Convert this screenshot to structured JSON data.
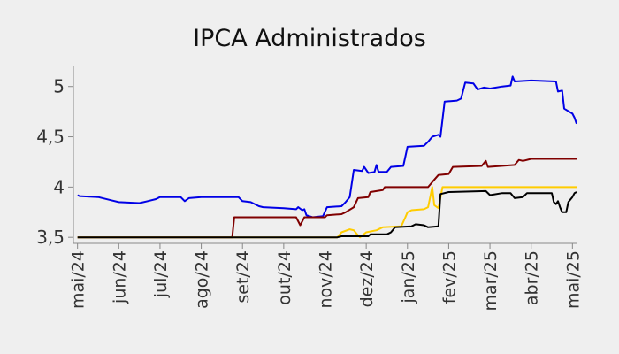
{
  "chart_data": {
    "type": "line",
    "title": "IPCA Administrados",
    "xlabel": "",
    "ylabel": "",
    "x_ticks": [
      {
        "t": 0,
        "label": "mai/24"
      },
      {
        "t": 1,
        "label": "jun/24"
      },
      {
        "t": 2,
        "label": "jul/24"
      },
      {
        "t": 3,
        "label": "ago/24"
      },
      {
        "t": 4,
        "label": "set/24"
      },
      {
        "t": 5,
        "label": "out/24"
      },
      {
        "t": 6,
        "label": "nov/24"
      },
      {
        "t": 7,
        "label": "dez/24"
      },
      {
        "t": 8,
        "label": "jan/25"
      },
      {
        "t": 9,
        "label": "fev/25"
      },
      {
        "t": 10,
        "label": "mar/25"
      },
      {
        "t": 11,
        "label": "abr/25"
      },
      {
        "t": 12,
        "label": "mai/25"
      }
    ],
    "y_ticks": [
      {
        "v": 3.5,
        "label": "3,5"
      },
      {
        "v": 4.0,
        "label": "4"
      },
      {
        "v": 4.5,
        "label": "4,5"
      },
      {
        "v": 5.0,
        "label": "5"
      }
    ],
    "xlim": [
      -0.1,
      12.1
    ],
    "ylim": [
      3.44,
      5.2
    ],
    "grid": false,
    "legend": "none",
    "series": [
      {
        "color": "#0000e6",
        "points": [
          [
            0.0,
            3.92
          ],
          [
            0.05,
            3.91
          ],
          [
            0.5,
            3.9
          ],
          [
            1.0,
            3.85
          ],
          [
            1.5,
            3.84
          ],
          [
            1.7,
            3.86
          ],
          [
            1.9,
            3.88
          ],
          [
            2.0,
            3.9
          ],
          [
            2.5,
            3.9
          ],
          [
            2.6,
            3.86
          ],
          [
            2.7,
            3.89
          ],
          [
            3.0,
            3.9
          ],
          [
            3.9,
            3.9
          ],
          [
            4.0,
            3.86
          ],
          [
            4.2,
            3.85
          ],
          [
            4.4,
            3.81
          ],
          [
            4.5,
            3.8
          ],
          [
            5.0,
            3.79
          ],
          [
            5.3,
            3.78
          ],
          [
            5.35,
            3.8
          ],
          [
            5.45,
            3.77
          ],
          [
            5.5,
            3.78
          ],
          [
            5.55,
            3.72
          ],
          [
            5.7,
            3.7
          ],
          [
            5.95,
            3.71
          ],
          [
            6.05,
            3.8
          ],
          [
            6.4,
            3.81
          ],
          [
            6.5,
            3.85
          ],
          [
            6.6,
            3.9
          ],
          [
            6.7,
            4.17
          ],
          [
            6.9,
            4.16
          ],
          [
            6.95,
            4.2
          ],
          [
            7.05,
            4.14
          ],
          [
            7.2,
            4.15
          ],
          [
            7.25,
            4.22
          ],
          [
            7.3,
            4.15
          ],
          [
            7.5,
            4.15
          ],
          [
            7.6,
            4.2
          ],
          [
            7.9,
            4.21
          ],
          [
            8.0,
            4.4
          ],
          [
            8.4,
            4.41
          ],
          [
            8.5,
            4.45
          ],
          [
            8.6,
            4.5
          ],
          [
            8.75,
            4.52
          ],
          [
            8.8,
            4.5
          ],
          [
            8.9,
            4.85
          ],
          [
            9.2,
            4.86
          ],
          [
            9.3,
            4.88
          ],
          [
            9.4,
            5.04
          ],
          [
            9.6,
            5.03
          ],
          [
            9.7,
            4.97
          ],
          [
            9.85,
            4.99
          ],
          [
            10.0,
            4.98
          ],
          [
            10.3,
            5.0
          ],
          [
            10.5,
            5.01
          ],
          [
            10.55,
            5.1
          ],
          [
            10.6,
            5.05
          ],
          [
            11.0,
            5.06
          ],
          [
            11.6,
            5.05
          ],
          [
            11.65,
            4.95
          ],
          [
            11.75,
            4.96
          ],
          [
            11.8,
            4.78
          ],
          [
            12.0,
            4.73
          ],
          [
            12.05,
            4.69
          ],
          [
            12.1,
            4.63
          ]
        ]
      },
      {
        "color": "#800000",
        "points": [
          [
            0.0,
            3.5
          ],
          [
            3.75,
            3.5
          ],
          [
            3.8,
            3.7
          ],
          [
            5.3,
            3.7
          ],
          [
            5.4,
            3.62
          ],
          [
            5.5,
            3.7
          ],
          [
            6.0,
            3.7
          ],
          [
            6.05,
            3.72
          ],
          [
            6.4,
            3.73
          ],
          [
            6.5,
            3.75
          ],
          [
            6.7,
            3.8
          ],
          [
            6.8,
            3.89
          ],
          [
            7.05,
            3.9
          ],
          [
            7.1,
            3.95
          ],
          [
            7.4,
            3.97
          ],
          [
            7.45,
            4.0
          ],
          [
            8.5,
            4.0
          ],
          [
            8.6,
            4.05
          ],
          [
            8.75,
            4.12
          ],
          [
            9.0,
            4.13
          ],
          [
            9.1,
            4.2
          ],
          [
            9.8,
            4.21
          ],
          [
            9.9,
            4.26
          ],
          [
            9.95,
            4.2
          ],
          [
            10.6,
            4.22
          ],
          [
            10.7,
            4.27
          ],
          [
            10.8,
            4.26
          ],
          [
            11.0,
            4.28
          ],
          [
            12.1,
            4.28
          ]
        ]
      },
      {
        "color": "#ffcc00",
        "points": [
          [
            0.0,
            3.5
          ],
          [
            6.3,
            3.5
          ],
          [
            6.4,
            3.55
          ],
          [
            6.6,
            3.58
          ],
          [
            6.7,
            3.57
          ],
          [
            6.8,
            3.52
          ],
          [
            6.85,
            3.5
          ],
          [
            7.0,
            3.55
          ],
          [
            7.25,
            3.57
          ],
          [
            7.4,
            3.6
          ],
          [
            7.85,
            3.61
          ],
          [
            7.95,
            3.7
          ],
          [
            8.0,
            3.75
          ],
          [
            8.1,
            3.77
          ],
          [
            8.4,
            3.78
          ],
          [
            8.5,
            3.8
          ],
          [
            8.6,
            4.0
          ],
          [
            8.65,
            3.82
          ],
          [
            8.75,
            3.79
          ],
          [
            8.85,
            4.0
          ],
          [
            12.1,
            4.0
          ]
        ]
      },
      {
        "color": "#000000",
        "points": [
          [
            0.0,
            3.5
          ],
          [
            4.0,
            3.5
          ],
          [
            6.3,
            3.5
          ],
          [
            6.4,
            3.51
          ],
          [
            7.05,
            3.51
          ],
          [
            7.1,
            3.53
          ],
          [
            7.5,
            3.53
          ],
          [
            7.6,
            3.55
          ],
          [
            7.7,
            3.6
          ],
          [
            8.1,
            3.61
          ],
          [
            8.2,
            3.63
          ],
          [
            8.4,
            3.62
          ],
          [
            8.5,
            3.6
          ],
          [
            8.75,
            3.61
          ],
          [
            8.8,
            3.93
          ],
          [
            9.0,
            3.95
          ],
          [
            9.9,
            3.96
          ],
          [
            10.0,
            3.92
          ],
          [
            10.3,
            3.94
          ],
          [
            10.5,
            3.94
          ],
          [
            10.6,
            3.89
          ],
          [
            10.8,
            3.9
          ],
          [
            10.9,
            3.94
          ],
          [
            11.5,
            3.94
          ],
          [
            11.55,
            3.85
          ],
          [
            11.6,
            3.83
          ],
          [
            11.65,
            3.86
          ],
          [
            11.7,
            3.8
          ],
          [
            11.75,
            3.75
          ],
          [
            11.85,
            3.75
          ],
          [
            11.9,
            3.85
          ],
          [
            12.0,
            3.9
          ],
          [
            12.05,
            3.94
          ],
          [
            12.1,
            3.95
          ]
        ]
      }
    ]
  }
}
